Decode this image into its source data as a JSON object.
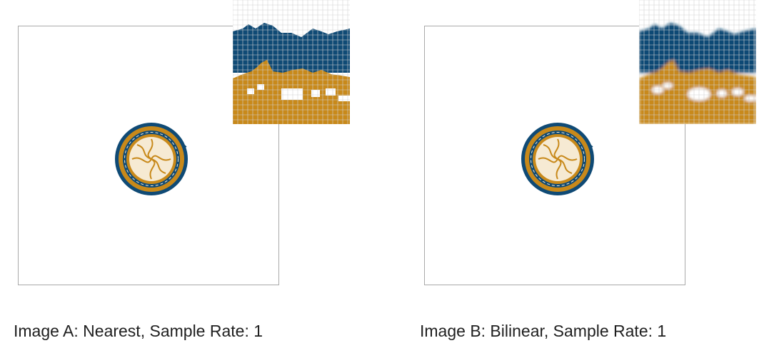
{
  "images": [
    {
      "caption": "Image A: Nearest, Sample Rate: 1",
      "interpolation": "nearest"
    },
    {
      "caption": "Image B: Bilinear, Sample Rate: 1",
      "interpolation": "bilinear"
    }
  ],
  "colors": {
    "navy": "#0f4a75",
    "gold": "#c8891a",
    "cream": "#f6ead3",
    "frame_border": "#a9a9a9",
    "grid": "#d2d2d2"
  },
  "icons": [
    "seal-emblem-icon",
    "zoom-magnifier-inset"
  ]
}
